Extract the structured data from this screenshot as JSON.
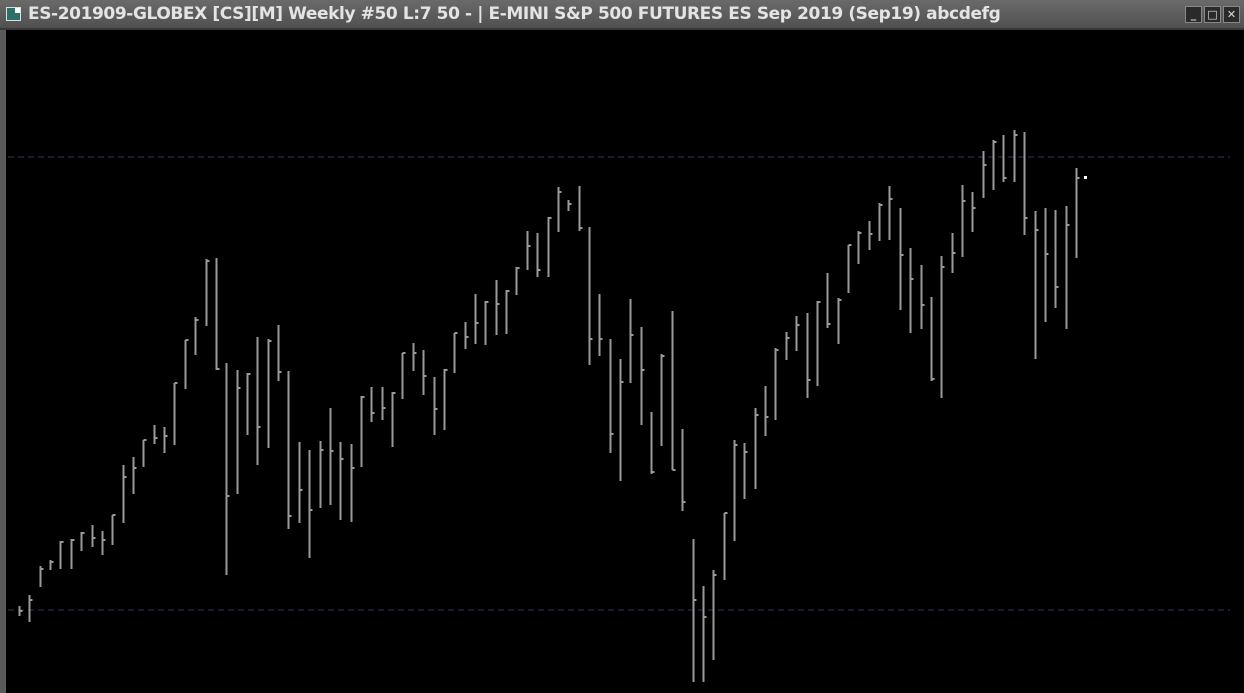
{
  "window": {
    "title": "ES-201909-GLOBEX [CS][M]  Weekly  #50  L:7  50 - | E-MINI S&P 500 FUTURES ES Sep 2019 (Sep19)  abcdefg",
    "buttons": [
      {
        "icon": "minimize-icon",
        "label": "_"
      },
      {
        "icon": "maximize-icon",
        "label": "□"
      },
      {
        "icon": "close-icon",
        "label": "✕"
      }
    ]
  },
  "chart": {
    "style": "OHLC bars",
    "background": "#000000",
    "bar_color": "#9a9a9a",
    "reference_line_color": "#2c3b57",
    "last_price_marker_color": "#ffffff"
  }
}
